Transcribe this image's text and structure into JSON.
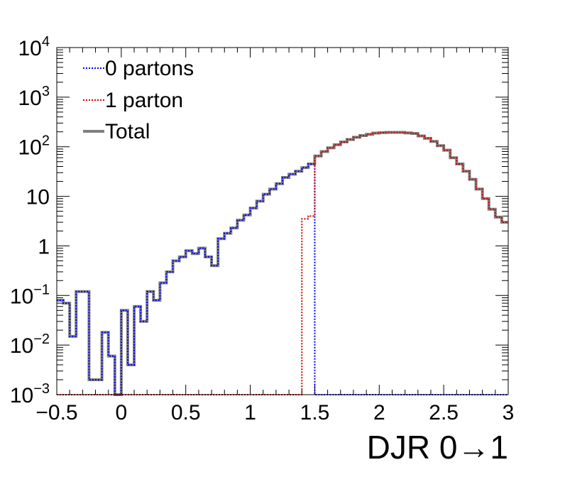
{
  "chart_data": {
    "type": "line",
    "xlabel": "DJR 0→1",
    "ylabel": "",
    "xlim": [
      -0.5,
      3.0
    ],
    "ylim": [
      0.001,
      10000
    ],
    "yscale": "log",
    "grid": false,
    "legend_position": "top-left",
    "x_ticks": [
      -0.5,
      0,
      0.5,
      1,
      1.5,
      2,
      2.5,
      3
    ],
    "x_tick_labels": [
      "−0.5",
      "0",
      "0.5",
      "1",
      "1.5",
      "2",
      "2.5",
      "3"
    ],
    "y_ticks": [
      {
        "value": 0.001,
        "base": "10",
        "exp": "−3"
      },
      {
        "value": 0.01,
        "base": "10",
        "exp": "−2"
      },
      {
        "value": 0.1,
        "base": "10",
        "exp": "−1"
      },
      {
        "value": 1,
        "base": "1",
        "exp": ""
      },
      {
        "value": 10,
        "base": "10",
        "exp": ""
      },
      {
        "value": 100,
        "base": "10",
        "exp": "2"
      },
      {
        "value": 1000,
        "base": "10",
        "exp": "3"
      },
      {
        "value": 10000,
        "base": "10",
        "exp": "4"
      }
    ],
    "bins": {
      "start": -0.5,
      "width": 0.05
    },
    "series": [
      {
        "name": "0 partons",
        "color": "#0000ff",
        "style": "dotted",
        "values": [
          0.08,
          0.07,
          0.015,
          0.12,
          0.12,
          0.002,
          0.002,
          0.018,
          0.006,
          0.001,
          0.05,
          0.004,
          0.06,
          0.03,
          0.12,
          0.08,
          0.18,
          0.3,
          0.5,
          0.6,
          0.8,
          0.7,
          0.9,
          0.6,
          0.4,
          1.4,
          1.8,
          2.3,
          3.3,
          4.2,
          5.8,
          8,
          11,
          14,
          18,
          24,
          28,
          32,
          38,
          45,
          0.001,
          0.001,
          0.001,
          0.001,
          0.001,
          0.001,
          0.001,
          0.001,
          0.001,
          0.001,
          0.001,
          0.001,
          0.001,
          0.001,
          0.001,
          0.001,
          0.001,
          0.001,
          0.001,
          0.001,
          0.001,
          0.001,
          0.001,
          0.001,
          0.001,
          0.001,
          0.001,
          0.001,
          0.001,
          0.001
        ]
      },
      {
        "name": "1 parton",
        "color": "#cc0000",
        "style": "dotted",
        "values": [
          0.001,
          0.001,
          0.001,
          0.001,
          0.001,
          0.001,
          0.001,
          0.001,
          0.001,
          0.001,
          0.001,
          0.001,
          0.001,
          0.001,
          0.001,
          0.001,
          0.001,
          0.001,
          0.001,
          0.001,
          0.001,
          0.001,
          0.001,
          0.001,
          0.001,
          0.001,
          0.001,
          0.001,
          0.001,
          0.001,
          0.001,
          0.001,
          0.001,
          0.001,
          0.001,
          0.001,
          0.001,
          0.001,
          3.5,
          4,
          65,
          80,
          95,
          110,
          125,
          140,
          155,
          168,
          178,
          188,
          192,
          195,
          195,
          195,
          190,
          185,
          165,
          148,
          128,
          105,
          85,
          60,
          45,
          32,
          22,
          14,
          9,
          5.5,
          3.8,
          3
        ]
      },
      {
        "name": "Total",
        "color": "#808080",
        "style": "solid",
        "values": [
          0.08,
          0.07,
          0.015,
          0.12,
          0.12,
          0.002,
          0.002,
          0.018,
          0.006,
          0.001,
          0.05,
          0.004,
          0.06,
          0.03,
          0.12,
          0.08,
          0.18,
          0.3,
          0.5,
          0.6,
          0.8,
          0.7,
          0.9,
          0.6,
          0.4,
          1.4,
          1.8,
          2.3,
          3.3,
          4.2,
          5.8,
          8,
          11,
          14,
          18,
          24,
          28,
          32,
          38,
          45,
          65,
          80,
          95,
          110,
          125,
          140,
          155,
          168,
          178,
          188,
          192,
          195,
          195,
          195,
          190,
          185,
          165,
          148,
          128,
          105,
          85,
          60,
          45,
          32,
          22,
          14,
          9,
          5.5,
          3.8,
          3
        ]
      }
    ]
  }
}
